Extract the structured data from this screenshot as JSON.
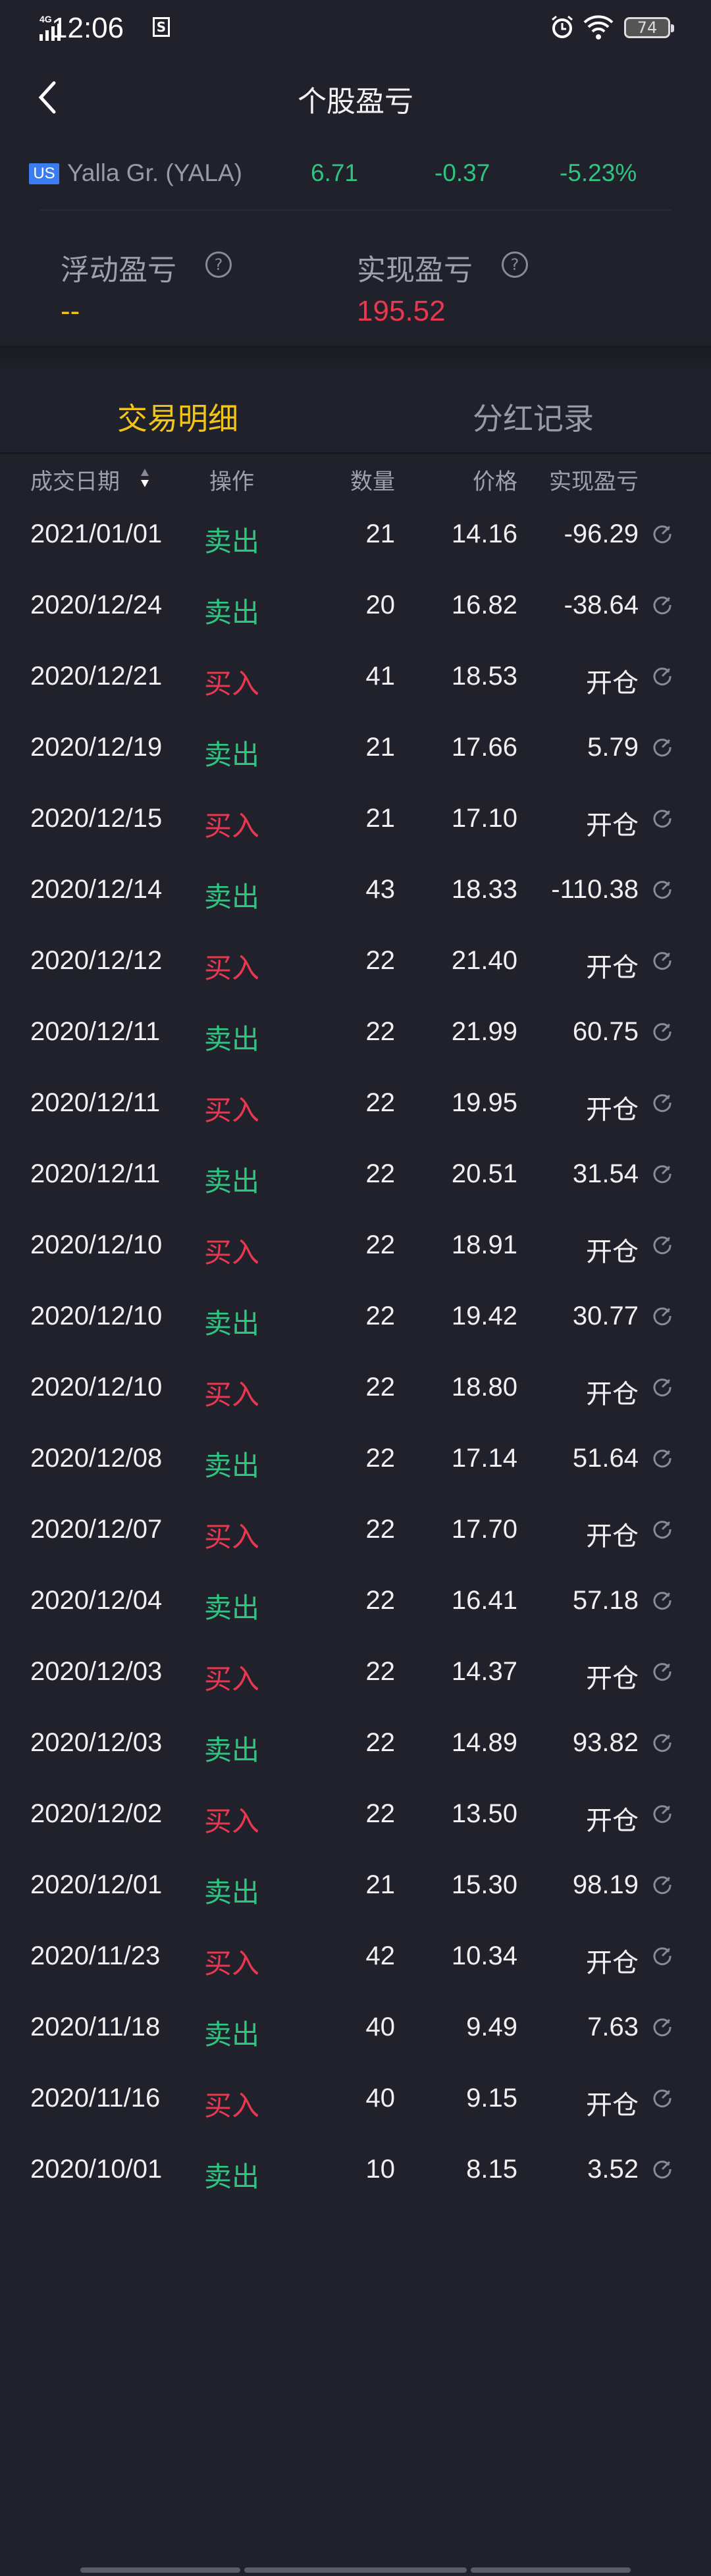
{
  "status_bar": {
    "network": "4G",
    "time": "12:06",
    "notification_icon": "S",
    "battery": "74"
  },
  "header": {
    "title": "个股盈亏",
    "back_icon": "chevron-left-icon"
  },
  "stock": {
    "market": "US",
    "name": "Yalla Gr. (YALA)",
    "price": "6.71",
    "change": "-0.37",
    "change_pct": "-5.23%"
  },
  "summary": {
    "floating_label": "浮动盈亏",
    "floating_value": "--",
    "realized_label": "实现盈亏",
    "realized_value": "195.52",
    "help": "?"
  },
  "tabs": [
    {
      "label": "交易明细",
      "active": true
    },
    {
      "label": "分红记录",
      "active": false
    }
  ],
  "table": {
    "headers": {
      "date": "成交日期",
      "op": "操作",
      "qty": "数量",
      "price": "价格",
      "pnl": "实现盈亏"
    },
    "rows": [
      {
        "date": "2021/01/01",
        "op": "卖出",
        "qty": "21",
        "price": "14.16",
        "pnl": "-96.29"
      },
      {
        "date": "2020/12/24",
        "op": "卖出",
        "qty": "20",
        "price": "16.82",
        "pnl": "-38.64"
      },
      {
        "date": "2020/12/21",
        "op": "买入",
        "qty": "41",
        "price": "18.53",
        "pnl": "开仓"
      },
      {
        "date": "2020/12/19",
        "op": "卖出",
        "qty": "21",
        "price": "17.66",
        "pnl": "5.79"
      },
      {
        "date": "2020/12/15",
        "op": "买入",
        "qty": "21",
        "price": "17.10",
        "pnl": "开仓"
      },
      {
        "date": "2020/12/14",
        "op": "卖出",
        "qty": "43",
        "price": "18.33",
        "pnl": "-110.38"
      },
      {
        "date": "2020/12/12",
        "op": "买入",
        "qty": "22",
        "price": "21.40",
        "pnl": "开仓"
      },
      {
        "date": "2020/12/11",
        "op": "卖出",
        "qty": "22",
        "price": "21.99",
        "pnl": "60.75"
      },
      {
        "date": "2020/12/11",
        "op": "买入",
        "qty": "22",
        "price": "19.95",
        "pnl": "开仓"
      },
      {
        "date": "2020/12/11",
        "op": "卖出",
        "qty": "22",
        "price": "20.51",
        "pnl": "31.54"
      },
      {
        "date": "2020/12/10",
        "op": "买入",
        "qty": "22",
        "price": "18.91",
        "pnl": "开仓"
      },
      {
        "date": "2020/12/10",
        "op": "卖出",
        "qty": "22",
        "price": "19.42",
        "pnl": "30.77"
      },
      {
        "date": "2020/12/10",
        "op": "买入",
        "qty": "22",
        "price": "18.80",
        "pnl": "开仓"
      },
      {
        "date": "2020/12/08",
        "op": "卖出",
        "qty": "22",
        "price": "17.14",
        "pnl": "51.64"
      },
      {
        "date": "2020/12/07",
        "op": "买入",
        "qty": "22",
        "price": "17.70",
        "pnl": "开仓"
      },
      {
        "date": "2020/12/04",
        "op": "卖出",
        "qty": "22",
        "price": "16.41",
        "pnl": "57.18"
      },
      {
        "date": "2020/12/03",
        "op": "买入",
        "qty": "22",
        "price": "14.37",
        "pnl": "开仓"
      },
      {
        "date": "2020/12/03",
        "op": "卖出",
        "qty": "22",
        "price": "14.89",
        "pnl": "93.82"
      },
      {
        "date": "2020/12/02",
        "op": "买入",
        "qty": "22",
        "price": "13.50",
        "pnl": "开仓"
      },
      {
        "date": "2020/12/01",
        "op": "卖出",
        "qty": "21",
        "price": "15.30",
        "pnl": "98.19"
      },
      {
        "date": "2020/11/23",
        "op": "买入",
        "qty": "42",
        "price": "10.34",
        "pnl": "开仓"
      },
      {
        "date": "2020/11/18",
        "op": "卖出",
        "qty": "40",
        "price": "9.49",
        "pnl": "7.63"
      },
      {
        "date": "2020/11/16",
        "op": "买入",
        "qty": "40",
        "price": "9.15",
        "pnl": "开仓"
      },
      {
        "date": "2020/10/01",
        "op": "卖出",
        "qty": "10",
        "price": "8.15",
        "pnl": "3.52"
      }
    ]
  },
  "colors": {
    "background": "#21212c",
    "sell": "#2fc47f",
    "buy": "#e8384f",
    "accent": "#f0c419",
    "muted": "#a0a0ab"
  }
}
